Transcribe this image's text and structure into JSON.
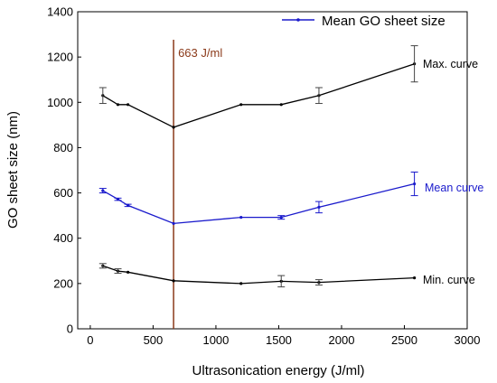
{
  "chart_data": {
    "type": "line",
    "xlabel": "Ultrasonication energy (J/ml)",
    "ylabel": "GO sheet size (nm)",
    "xlim": [
      -100,
      3000
    ],
    "ylim": [
      0,
      1400
    ],
    "xticks": [
      0,
      500,
      1000,
      1500,
      2000,
      2500,
      3000
    ],
    "yticks": [
      0,
      200,
      400,
      600,
      800,
      1000,
      1200,
      1400
    ],
    "legend": {
      "label": "Mean GO sheet size",
      "placement": "top-right"
    },
    "vertical_marker": {
      "x": 663,
      "label": "663 J/ml",
      "color": "#8b3a1a"
    },
    "series": [
      {
        "name": "Max. curve",
        "color": "#000000",
        "x": [
          100,
          220,
          300,
          663,
          1200,
          1520,
          1820,
          2580
        ],
        "y": [
          1030,
          990,
          990,
          890,
          990,
          990,
          1030,
          1170
        ],
        "errors": [
          {
            "x": 100,
            "err": 35
          },
          {
            "x": 1820,
            "err": 35
          },
          {
            "x": 2580,
            "err": 80
          }
        ]
      },
      {
        "name": "Mean curve",
        "color": "#1a1acc",
        "x": [
          100,
          220,
          300,
          663,
          1200,
          1520,
          1820,
          2580
        ],
        "y": [
          610,
          572,
          545,
          465,
          492,
          492,
          537,
          640
        ],
        "errors": [
          {
            "x": 100,
            "err": 10
          },
          {
            "x": 220,
            "err": 5
          },
          {
            "x": 300,
            "err": 5
          },
          {
            "x": 1520,
            "err": 8
          },
          {
            "x": 1820,
            "err": 25
          },
          {
            "x": 2580,
            "err": 52
          }
        ]
      },
      {
        "name": "Min. curve",
        "color": "#000000",
        "x": [
          100,
          220,
          300,
          663,
          1200,
          1520,
          1820,
          2580
        ],
        "y": [
          278,
          255,
          250,
          212,
          200,
          210,
          205,
          225
        ],
        "errors": [
          {
            "x": 100,
            "err": 10
          },
          {
            "x": 220,
            "err": 10
          },
          {
            "x": 1520,
            "err": 25
          },
          {
            "x": 1820,
            "err": 12
          }
        ]
      }
    ]
  }
}
